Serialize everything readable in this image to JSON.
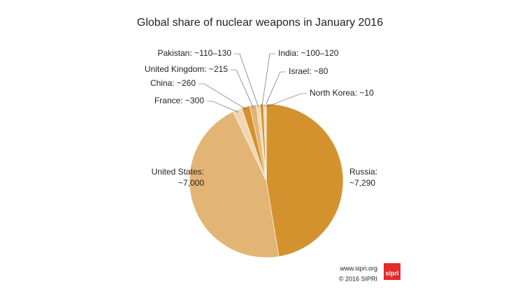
{
  "chart_data": {
    "type": "pie",
    "title": "Global share of nuclear weapons in January 2016",
    "categories": [
      "Russia:",
      "United States:",
      "France:",
      "China:",
      "United Kingdom:",
      "Pakistan:",
      "India:",
      "Israel:",
      "North Korea:"
    ],
    "values": [
      7290,
      7000,
      300,
      260,
      215,
      120,
      110,
      80,
      10
    ],
    "value_labels": [
      "~7,290",
      "~7,000",
      "~300",
      "~260",
      "~215",
      "~110–130",
      "~100–120",
      "~80",
      "~10"
    ],
    "colors": [
      "#d4922e",
      "#e3b574",
      "#f2d6b3",
      "#d4922e",
      "#e3b574",
      "#f2d6b3",
      "#d4922e",
      "#f2d6b3",
      "#d4922e"
    ]
  },
  "footer": {
    "url": "www.sipri.org",
    "copyright": "© 2016 SIPRI",
    "logo": "sipri"
  }
}
